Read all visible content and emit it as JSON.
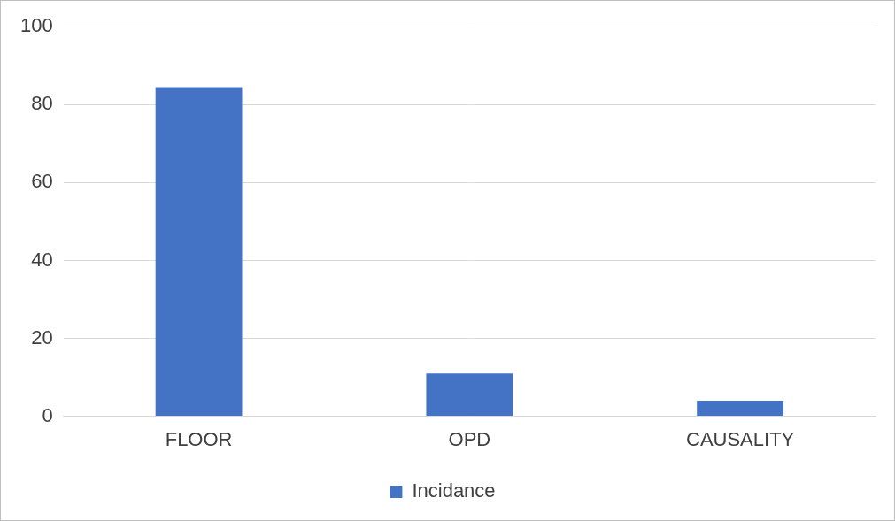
{
  "chart_data": {
    "type": "bar",
    "categories": [
      "FLOOR",
      "OPD",
      "CAUSALITY"
    ],
    "series": [
      {
        "name": "Incidance",
        "color": "#4472c4",
        "values": [
          84.5,
          11,
          4
        ]
      }
    ],
    "ylim": [
      0,
      100
    ],
    "yticks": [
      0,
      20,
      40,
      60,
      80,
      100
    ],
    "grid": true,
    "legend": "bottom"
  }
}
